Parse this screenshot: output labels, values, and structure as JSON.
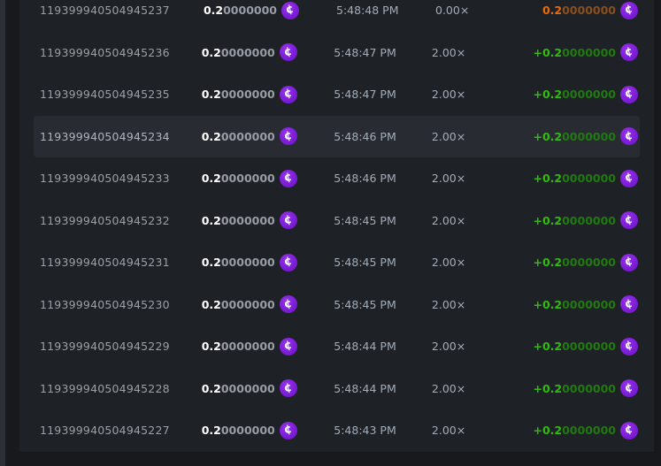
{
  "colors": {
    "page_background": "#17191c",
    "panel_background": "#1e2125",
    "row_highlight": "#282b31",
    "coin_purple": "#7d1ed8",
    "win_green": "#2fbc0f",
    "win_green_dim": "#217a10",
    "loss_orange": "#ee6a00",
    "loss_orange_dim": "#8a4f1d"
  },
  "currency": {
    "icon": "stake-cash-coin-icon",
    "symbol": "¢"
  },
  "table": {
    "rows": [
      {
        "id": "119399940504945237",
        "amount_main": "0.2",
        "amount_zeros": "0000000",
        "time": "5:48:48 PM",
        "multiplier": "0.00×",
        "payout_main": "0.2",
        "payout_zeros": "0000000",
        "result": "loss",
        "highlighted": false
      },
      {
        "id": "119399940504945236",
        "amount_main": "0.2",
        "amount_zeros": "0000000",
        "time": "5:48:47 PM",
        "multiplier": "2.00×",
        "payout_main": "+0.2",
        "payout_zeros": "0000000",
        "result": "win",
        "highlighted": false
      },
      {
        "id": "119399940504945235",
        "amount_main": "0.2",
        "amount_zeros": "0000000",
        "time": "5:48:47 PM",
        "multiplier": "2.00×",
        "payout_main": "+0.2",
        "payout_zeros": "0000000",
        "result": "win",
        "highlighted": false
      },
      {
        "id": "119399940504945234",
        "amount_main": "0.2",
        "amount_zeros": "0000000",
        "time": "5:48:46 PM",
        "multiplier": "2.00×",
        "payout_main": "+0.2",
        "payout_zeros": "0000000",
        "result": "win",
        "highlighted": true
      },
      {
        "id": "119399940504945233",
        "amount_main": "0.2",
        "amount_zeros": "0000000",
        "time": "5:48:46 PM",
        "multiplier": "2.00×",
        "payout_main": "+0.2",
        "payout_zeros": "0000000",
        "result": "win",
        "highlighted": false
      },
      {
        "id": "119399940504945232",
        "amount_main": "0.2",
        "amount_zeros": "0000000",
        "time": "5:48:45 PM",
        "multiplier": "2.00×",
        "payout_main": "+0.2",
        "payout_zeros": "0000000",
        "result": "win",
        "highlighted": false
      },
      {
        "id": "119399940504945231",
        "amount_main": "0.2",
        "amount_zeros": "0000000",
        "time": "5:48:45 PM",
        "multiplier": "2.00×",
        "payout_main": "+0.2",
        "payout_zeros": "0000000",
        "result": "win",
        "highlighted": false
      },
      {
        "id": "119399940504945230",
        "amount_main": "0.2",
        "amount_zeros": "0000000",
        "time": "5:48:45 PM",
        "multiplier": "2.00×",
        "payout_main": "+0.2",
        "payout_zeros": "0000000",
        "result": "win",
        "highlighted": false
      },
      {
        "id": "119399940504945229",
        "amount_main": "0.2",
        "amount_zeros": "0000000",
        "time": "5:48:44 PM",
        "multiplier": "2.00×",
        "payout_main": "+0.2",
        "payout_zeros": "0000000",
        "result": "win",
        "highlighted": false
      },
      {
        "id": "119399940504945228",
        "amount_main": "0.2",
        "amount_zeros": "0000000",
        "time": "5:48:44 PM",
        "multiplier": "2.00×",
        "payout_main": "+0.2",
        "payout_zeros": "0000000",
        "result": "win",
        "highlighted": false
      },
      {
        "id": "119399940504945227",
        "amount_main": "0.2",
        "amount_zeros": "0000000",
        "time": "5:48:43 PM",
        "multiplier": "2.00×",
        "payout_main": "+0.2",
        "payout_zeros": "0000000",
        "result": "win",
        "highlighted": false
      }
    ]
  }
}
